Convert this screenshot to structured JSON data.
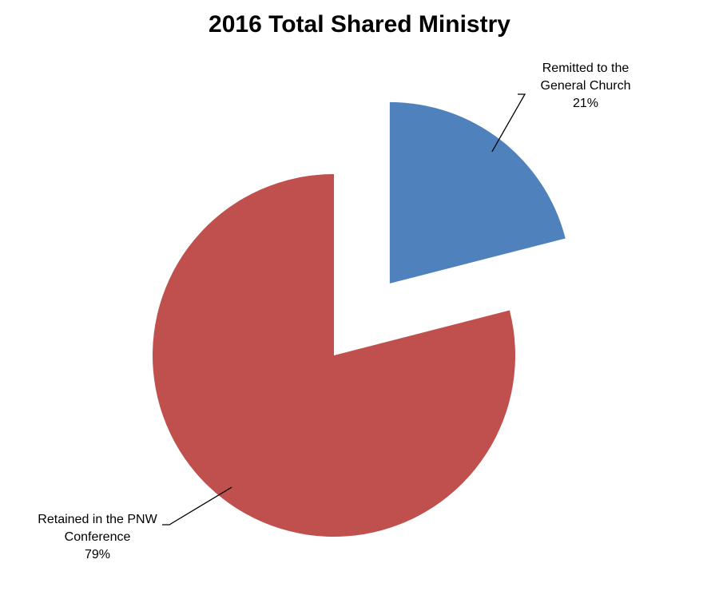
{
  "chart_data": {
    "type": "pie",
    "title": "2016 Total Shared Ministry",
    "categories": [
      "Remitted to the General Church",
      "Retained in the PNW Conference"
    ],
    "values": [
      21,
      79
    ],
    "value_labels": [
      "21%",
      "79%"
    ],
    "colors": [
      "#4f81bd",
      "#c0504d"
    ]
  }
}
